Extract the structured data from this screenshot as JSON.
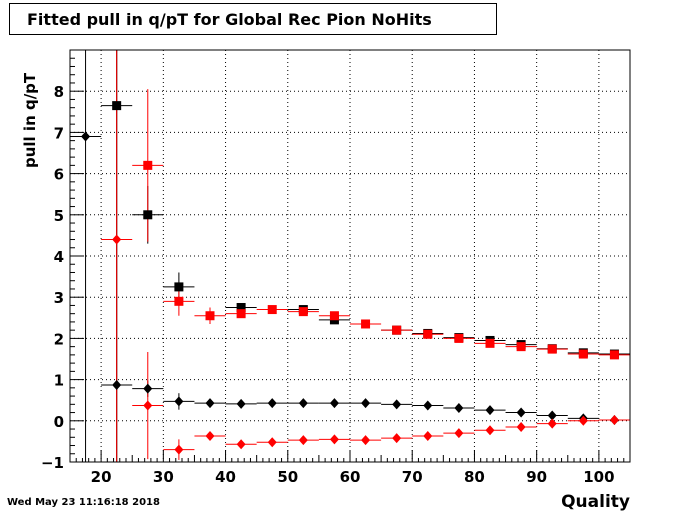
{
  "window": {
    "title": "Fitted pull in q/pT for Global Rec Pion NoHits",
    "timestamp": "Wed May 23 11:16:18 2018"
  },
  "chart_data": {
    "type": "scatter",
    "title": "Fitted pull in q/pT for Global Rec Pion NoHits",
    "xlabel": "Quality",
    "ylabel": "pull in q/pT",
    "xlim": [
      15,
      105
    ],
    "ylim": [
      -1,
      9
    ],
    "xticks": [
      20,
      30,
      40,
      50,
      60,
      70,
      80,
      90,
      100
    ],
    "yticks": [
      -1,
      0,
      1,
      2,
      3,
      4,
      5,
      6,
      7,
      8
    ],
    "grid": true,
    "series": [
      {
        "color": "#000000",
        "marker": "square",
        "x": [
          22.5,
          27.5,
          32.5,
          42.5,
          52.5,
          57.5,
          67.5,
          72.5,
          77.5,
          82.5,
          87.5,
          92.5,
          97.5,
          102.5
        ],
        "y": [
          7.65,
          5.0,
          3.25,
          2.75,
          2.7,
          2.45,
          2.2,
          2.12,
          2.02,
          1.95,
          1.85,
          1.75,
          1.65,
          1.62
        ],
        "yerr": [
          null,
          0.7,
          0.35,
          0.1,
          0.05,
          0.05,
          0.05,
          0.04,
          0.04,
          0.03,
          0.03,
          0.03,
          0.03,
          0.03
        ]
      },
      {
        "color": "#ff0000",
        "marker": "square",
        "x": [
          27.5,
          32.5,
          37.5,
          42.5,
          47.5,
          52.5,
          57.5,
          62.5,
          67.5,
          72.5,
          77.5,
          82.5,
          87.5,
          92.5,
          97.5,
          102.5
        ],
        "y": [
          6.2,
          2.9,
          2.55,
          2.6,
          2.7,
          2.65,
          2.55,
          2.35,
          2.2,
          2.1,
          2.0,
          1.88,
          1.8,
          1.74,
          1.62,
          1.6
        ],
        "yerr": [
          1.85,
          0.35,
          0.2,
          0.1,
          0.05,
          0.05,
          0.05,
          0.04,
          0.04,
          0.04,
          0.03,
          0.03,
          0.03,
          0.03,
          0.03,
          0.03
        ]
      },
      {
        "color": "#000000",
        "marker": "diamond",
        "x": [
          17.5,
          22.5,
          27.5,
          32.5,
          37.5,
          42.5,
          47.5,
          52.5,
          57.5,
          62.5,
          67.5,
          72.5,
          77.5,
          82.5,
          87.5,
          92.5,
          97.5,
          102.5
        ],
        "y": [
          6.9,
          0.87,
          0.78,
          0.47,
          0.43,
          0.41,
          0.43,
          0.43,
          0.43,
          0.43,
          0.4,
          0.37,
          0.31,
          0.26,
          0.2,
          0.13,
          0.06,
          0.02
        ],
        "yerr": [
          null,
          null,
          0.2,
          0.2,
          0.06,
          0.04,
          0.03,
          0.03,
          0.03,
          0.03,
          0.03,
          0.03,
          0.03,
          0.03,
          0.03,
          0.03,
          0.03,
          0.03
        ]
      },
      {
        "color": "#ff0000",
        "marker": "diamond",
        "x": [
          22.5,
          27.5,
          32.5,
          37.5,
          42.5,
          47.5,
          52.5,
          57.5,
          62.5,
          67.5,
          72.5,
          77.5,
          82.5,
          87.5,
          92.5,
          97.5,
          102.5
        ],
        "y": [
          4.4,
          0.37,
          -0.7,
          -0.37,
          -0.57,
          -0.52,
          -0.47,
          -0.45,
          -0.47,
          -0.42,
          -0.37,
          -0.3,
          -0.23,
          -0.15,
          -0.07,
          0.0,
          0.02
        ],
        "yerr": [
          null,
          1.3,
          0.25,
          0.08,
          0.06,
          0.05,
          0.05,
          0.05,
          0.04,
          0.04,
          0.04,
          0.04,
          0.04,
          0.04,
          0.04,
          0.04,
          0.04
        ]
      }
    ]
  }
}
